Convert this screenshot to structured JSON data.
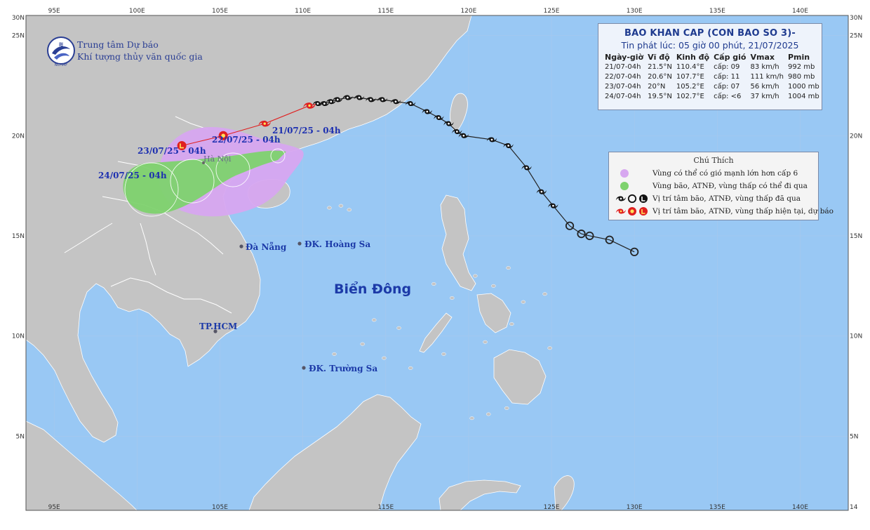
{
  "map": {
    "lon_min": 93.3,
    "lon_max": 142.9,
    "lat_max": 26.0,
    "lat_min": 1.3,
    "colors": {
      "sea": "#99c8f4",
      "land": "#c4c4c4",
      "border": "#ffffff",
      "grid": "#a8c8ec",
      "wind_zone": "#d7a7f0",
      "storm_zone": "#7ed26e",
      "track": "#222222",
      "forecast": "#e02020"
    },
    "top_ticks": [
      "95E",
      "100E",
      "105E",
      "110E",
      "115E",
      "120E",
      "125E",
      "130E",
      "135E",
      "140E"
    ],
    "bottom_ticks": [
      "95E",
      "105E",
      "115E",
      "125E",
      "130E",
      "135E",
      "140E"
    ],
    "left_ticks": [
      "25N",
      "20N",
      "15N",
      "10N",
      "5N"
    ],
    "right_ticks": [
      "25N",
      "20N",
      "15N",
      "10N",
      "5N"
    ],
    "corner_labels": {
      "top_left": "30N",
      "top_right": "30N",
      "bottom_right": "14"
    }
  },
  "agency": {
    "line1": "Trung tâm Dự báo",
    "line2": "Khí tượng thủy văn quốc gia",
    "logo_text": "NCHMF"
  },
  "bulletin": {
    "title": "BAO KHAN CAP (CON BAO SO 3)-",
    "issued": "Tin phát lúc: 05 giờ 00 phút, 21/07/2025",
    "headers": [
      "Ngày-giờ",
      "Vĩ độ",
      "Kinh độ",
      "Cấp gió",
      "Vmax",
      "Pmin"
    ],
    "rows": [
      [
        "21/07-04h",
        "21.5°N",
        "110.4°E",
        "cấp: 09",
        "83 km/h",
        "992 mb"
      ],
      [
        "22/07-04h",
        "20.6°N",
        "107.7°E",
        "cấp: 11",
        "111 km/h",
        "980 mb"
      ],
      [
        "23/07-04h",
        "20°N",
        "105.2°E",
        "cấp: 07",
        "56 km/h",
        "1000 mb"
      ],
      [
        "24/07-04h",
        "19.5°N",
        "102.7°E",
        "cấp: <6",
        "37 km/h",
        "1004 mb"
      ]
    ]
  },
  "legend": {
    "title": "Chú Thích",
    "items": [
      {
        "text": "Vùng có thể có gió mạnh lớn hơn cấp 6",
        "symbol": "wind-zone-dot"
      },
      {
        "text": "Vùng bão, ATNĐ, vùng thấp có thể đi qua",
        "symbol": "storm-zone-dot"
      },
      {
        "text": "Vị trí tâm bão, ATNĐ, vùng thấp đã qua",
        "symbol": "past-position-icons"
      },
      {
        "text": "Vị trí tâm bão, ATNĐ, vùng thấp hiện tại, dự báo",
        "symbol": "forecast-position-icons"
      }
    ]
  },
  "places": {
    "sea_name": "Biển Đông",
    "danang": "Đà Nẵng",
    "hoangsa": "ĐK. Hoàng Sa",
    "hcm": "TP.HCM",
    "truongsa": "ĐK. Trường Sa",
    "hanoi": "Hà Nội"
  },
  "forecast_labels": [
    "21/07/25 - 04h",
    "22/07/25 - 04h",
    "23/07/25 - 04h",
    "24/07/25 - 04h"
  ],
  "forecast_points": [
    {
      "lon": 110.4,
      "lat": 21.5,
      "symbol": "typhoon-icon"
    },
    {
      "lon": 107.7,
      "lat": 20.6,
      "symbol": "typhoon-icon"
    },
    {
      "lon": 105.2,
      "lat": 20.0,
      "symbol": "tropical-depression-icon"
    },
    {
      "lon": 102.7,
      "lat": 19.5,
      "symbol": "low-pressure-icon"
    }
  ],
  "past_track": [
    {
      "lon": 130.0,
      "lat": 14.2,
      "symbol": "tropical-depression-icon"
    },
    {
      "lon": 128.5,
      "lat": 14.8,
      "symbol": "tropical-depression-icon"
    },
    {
      "lon": 127.3,
      "lat": 15.0,
      "symbol": "tropical-depression-icon"
    },
    {
      "lon": 126.8,
      "lat": 15.1,
      "symbol": "tropical-depression-icon"
    },
    {
      "lon": 126.1,
      "lat": 15.5,
      "symbol": "tropical-depression-icon"
    },
    {
      "lon": 125.1,
      "lat": 16.5,
      "symbol": "typhoon-icon"
    },
    {
      "lon": 124.4,
      "lat": 17.2,
      "symbol": "typhoon-icon"
    },
    {
      "lon": 123.5,
      "lat": 18.4,
      "symbol": "typhoon-icon"
    },
    {
      "lon": 122.4,
      "lat": 19.5,
      "symbol": "typhoon-icon"
    },
    {
      "lon": 121.4,
      "lat": 19.8,
      "symbol": "typhoon-icon"
    },
    {
      "lon": 119.7,
      "lat": 20.0,
      "symbol": "typhoon-icon"
    },
    {
      "lon": 119.3,
      "lat": 20.2,
      "symbol": "typhoon-icon"
    },
    {
      "lon": 118.8,
      "lat": 20.6,
      "symbol": "typhoon-icon"
    },
    {
      "lon": 118.2,
      "lat": 20.9,
      "symbol": "typhoon-icon"
    },
    {
      "lon": 117.5,
      "lat": 21.2,
      "symbol": "typhoon-icon"
    },
    {
      "lon": 116.5,
      "lat": 21.6,
      "symbol": "typhoon-icon"
    },
    {
      "lon": 115.6,
      "lat": 21.7,
      "symbol": "typhoon-icon"
    },
    {
      "lon": 114.8,
      "lat": 21.8,
      "symbol": "typhoon-icon"
    },
    {
      "lon": 114.1,
      "lat": 21.8,
      "symbol": "typhoon-icon"
    },
    {
      "lon": 113.4,
      "lat": 21.9,
      "symbol": "typhoon-icon"
    },
    {
      "lon": 112.7,
      "lat": 21.9,
      "symbol": "typhoon-icon"
    },
    {
      "lon": 112.1,
      "lat": 21.8,
      "symbol": "typhoon-icon"
    },
    {
      "lon": 111.7,
      "lat": 21.7,
      "symbol": "typhoon-icon"
    },
    {
      "lon": 111.3,
      "lat": 21.6,
      "symbol": "typhoon-icon"
    },
    {
      "lon": 110.9,
      "lat": 21.6,
      "symbol": "typhoon-icon"
    }
  ]
}
